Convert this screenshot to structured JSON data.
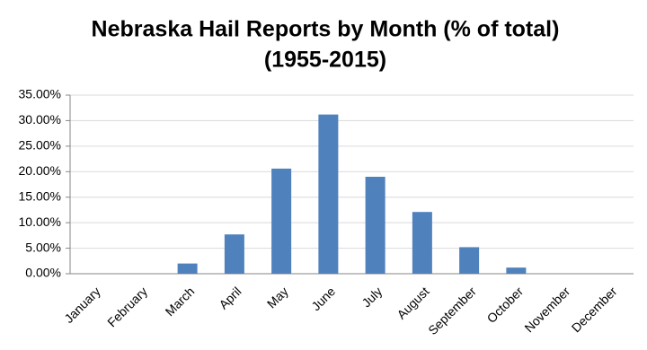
{
  "chart_data": {
    "type": "bar",
    "title": "Nebraska Hail Reports by Month (% of total)",
    "subtitle": "(1955-2015)",
    "categories": [
      "January",
      "February",
      "March",
      "April",
      "May",
      "June",
      "July",
      "August",
      "September",
      "October",
      "November",
      "December"
    ],
    "values": [
      0,
      0,
      2.0,
      7.7,
      20.6,
      31.2,
      19.0,
      12.1,
      5.2,
      1.2,
      0,
      0
    ],
    "color": "#4f81bd",
    "ylim": [
      0,
      35
    ],
    "yticks": [
      {
        "value": 0,
        "label": "0.00%"
      },
      {
        "value": 5,
        "label": "5.00%"
      },
      {
        "value": 10,
        "label": "10.00%"
      },
      {
        "value": 15,
        "label": "15.00%"
      },
      {
        "value": 20,
        "label": "20.00%"
      },
      {
        "value": 25,
        "label": "25.00%"
      },
      {
        "value": 30,
        "label": "30.00%"
      },
      {
        "value": 35,
        "label": "35.00%"
      }
    ],
    "grid": true
  }
}
